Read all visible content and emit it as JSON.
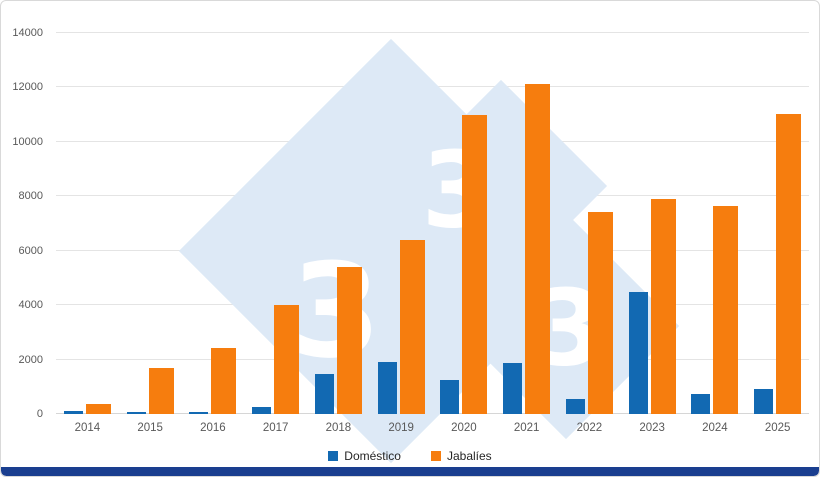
{
  "chart_data": {
    "type": "bar",
    "categories": [
      "2014",
      "2015",
      "2016",
      "2017",
      "2018",
      "2019",
      "2020",
      "2021",
      "2022",
      "2023",
      "2024",
      "2025"
    ],
    "series": [
      {
        "name": "Doméstico",
        "color": "#1269b2",
        "values": [
          100,
          60,
          80,
          260,
          1460,
          1900,
          1240,
          1870,
          550,
          4470,
          740,
          930
        ]
      },
      {
        "name": "Jabalíes",
        "color": "#f67d0e",
        "values": [
          350,
          1690,
          2420,
          4000,
          5390,
          6410,
          10990,
          12140,
          7440,
          7900,
          7650,
          11040
        ]
      }
    ],
    "title": "",
    "xlabel": "",
    "ylabel": "",
    "ylim": [
      0,
      14000
    ],
    "ytick_step": 2000,
    "grid": true,
    "legend_position": "bottom"
  },
  "watermark": {
    "text": "3",
    "color": "#dde9f6"
  },
  "footer": {
    "color": "#1a3e8f"
  }
}
